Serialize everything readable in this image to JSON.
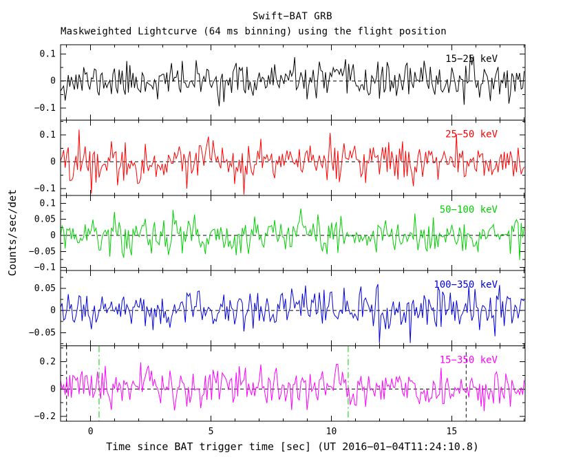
{
  "chart_data": {
    "type": "line",
    "title": "Swift−BAT GRB",
    "subtitle": "Maskweighted Lightcurve (64 ms binning) using the flight position",
    "xlabel": "Time since BAT trigger time [sec] (UT 2016−01−04T11:24:10.8)",
    "ylabel": "Counts/sec/det",
    "grid": false,
    "legend": "per-panel right-aligned energy band labels",
    "x": {
      "min": -1.25,
      "max": 18.05,
      "major_ticks": [
        0,
        5,
        10,
        15
      ],
      "minor_step": 1,
      "bin_sec": 0.064
    },
    "panels": [
      {
        "label": "15−25 keV",
        "color": "#000000",
        "ylim": [
          -0.145,
          0.135
        ],
        "yticks": [
          -0.1,
          0,
          0.1
        ],
        "y_minor_step": 0.05,
        "noise_sigma": 0.033,
        "seed": 11,
        "burst": null
      },
      {
        "label": "25−50 keV",
        "color": "#ff0000",
        "ylim": [
          -0.125,
          0.155
        ],
        "yticks": [
          -0.1,
          0,
          0.1
        ],
        "y_minor_step": 0.05,
        "noise_sigma": 0.038,
        "seed": 22,
        "burst": null
      },
      {
        "label": "50−100 keV",
        "color": "#00d000",
        "ylim": [
          -0.11,
          0.125
        ],
        "yticks": [
          -0.1,
          -0.05,
          0,
          0.05,
          0.1
        ],
        "y_minor_step": 0.025,
        "noise_sigma": 0.03,
        "seed": 33,
        "burst": null
      },
      {
        "label": "100−350 keV",
        "color": "#0000dd",
        "ylim": [
          -0.08,
          0.09
        ],
        "yticks": [
          -0.05,
          0,
          0.05
        ],
        "y_minor_step": 0.025,
        "noise_sigma": 0.023,
        "seed": 44,
        "burst": null
      },
      {
        "label": "15−350 keV",
        "color": "#ff00ff",
        "ylim": [
          -0.235,
          0.315
        ],
        "yticks": [
          -0.2,
          0,
          0.2
        ],
        "y_minor_step": 0.1,
        "noise_sigma": 0.072,
        "seed": 55,
        "burst": {
          "t_start": 0.35,
          "t_stop": 10.7,
          "amplitude": 0.02
        }
      }
    ],
    "zero_line": {
      "color": "#000000",
      "style": "dashed"
    },
    "event_lines": [
      {
        "panel": 4,
        "x": -1.0,
        "color": "#000000",
        "style": "dashed"
      },
      {
        "panel": 4,
        "x": 0.35,
        "color": "#00d000",
        "style": "dash-dot"
      },
      {
        "panel": 4,
        "x": 10.7,
        "color": "#00d000",
        "style": "dash-dot"
      },
      {
        "panel": 4,
        "x": 15.6,
        "color": "#000000",
        "style": "dashed"
      }
    ]
  }
}
